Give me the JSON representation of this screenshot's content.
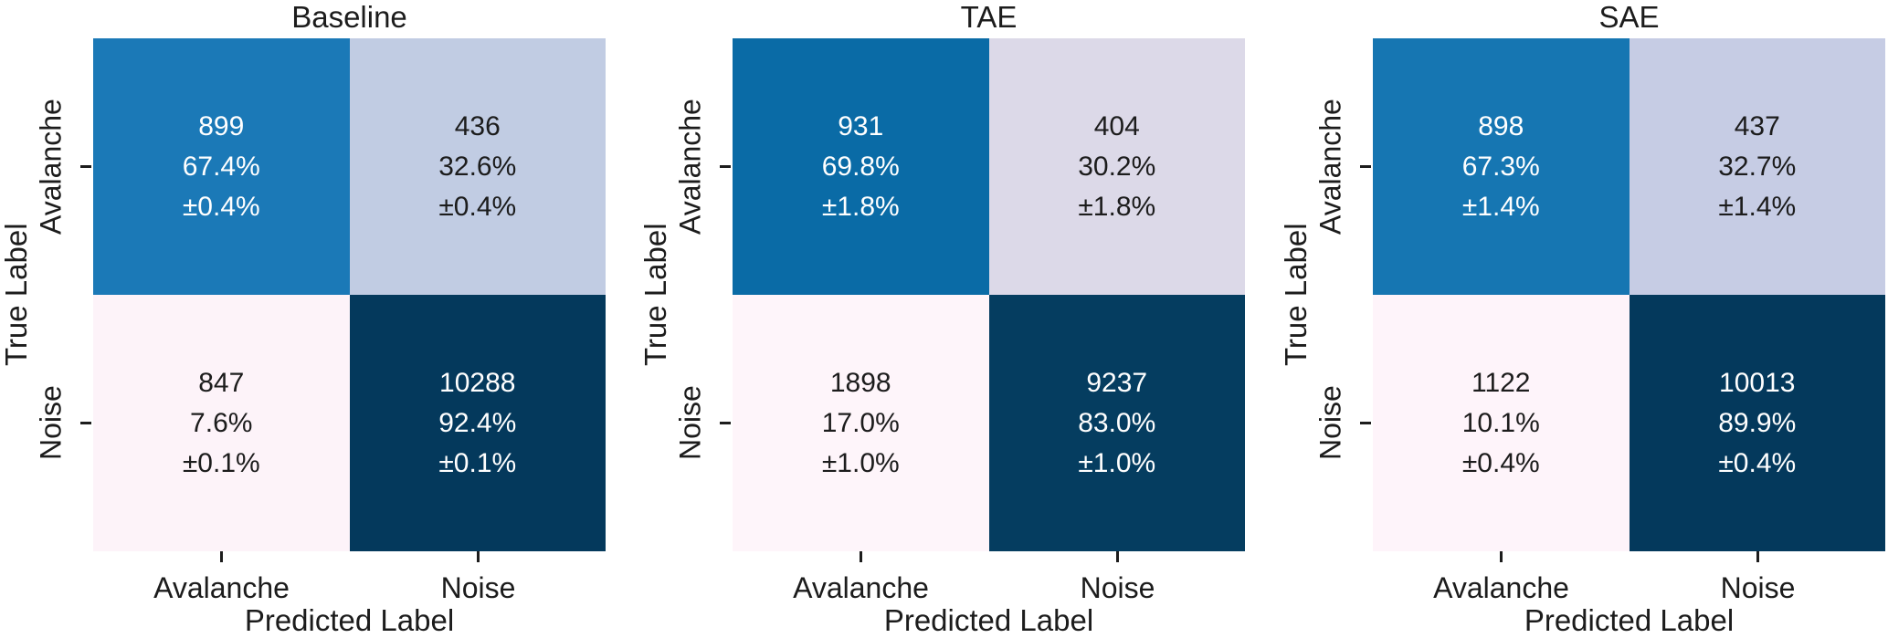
{
  "chart_data": [
    {
      "type": "heatmap",
      "title": "Baseline",
      "xlabel": "Predicted Label",
      "ylabel": "True Label",
      "x_categories": [
        "Avalanche",
        "Noise"
      ],
      "y_categories": [
        "Avalanche",
        "Noise"
      ],
      "rows": [
        {
          "true_label": "Avalanche",
          "cells": [
            {
              "predicted_label": "Avalanche",
              "count": "899",
              "percent": "67.4%",
              "error": "±0.4%",
              "bg": "#1b79b7",
              "fg": "#ffffff"
            },
            {
              "predicted_label": "Noise",
              "count": "436",
              "percent": "32.6%",
              "error": "±0.4%",
              "bg": "#c1cce3",
              "fg": "#1c1c1c"
            }
          ]
        },
        {
          "true_label": "Noise",
          "cells": [
            {
              "predicted_label": "Avalanche",
              "count": "847",
              "percent": "7.6%",
              "error": "±0.1%",
              "bg": "#fdf3f9",
              "fg": "#1c1c1c"
            },
            {
              "predicted_label": "Noise",
              "count": "10288",
              "percent": "92.4%",
              "error": "±0.1%",
              "bg": "#04395c",
              "fg": "#ffffff"
            }
          ]
        }
      ]
    },
    {
      "type": "heatmap",
      "title": "TAE",
      "xlabel": "Predicted Label",
      "ylabel": "True Label",
      "x_categories": [
        "Avalanche",
        "Noise"
      ],
      "y_categories": [
        "Avalanche",
        "Noise"
      ],
      "rows": [
        {
          "true_label": "Avalanche",
          "cells": [
            {
              "predicted_label": "Avalanche",
              "count": "931",
              "percent": "69.8%",
              "error": "±1.8%",
              "bg": "#0a6ba6",
              "fg": "#ffffff"
            },
            {
              "predicted_label": "Noise",
              "count": "404",
              "percent": "30.2%",
              "error": "±1.8%",
              "bg": "#dcd9e8",
              "fg": "#1c1c1c"
            }
          ]
        },
        {
          "true_label": "Noise",
          "cells": [
            {
              "predicted_label": "Avalanche",
              "count": "1898",
              "percent": "17.0%",
              "error": "±1.0%",
              "bg": "#fef5fa",
              "fg": "#1c1c1c"
            },
            {
              "predicted_label": "Noise",
              "count": "9237",
              "percent": "83.0%",
              "error": "±1.0%",
              "bg": "#053d60",
              "fg": "#ffffff"
            }
          ]
        }
      ]
    },
    {
      "type": "heatmap",
      "title": "SAE",
      "xlabel": "Predicted Label",
      "ylabel": "True Label",
      "x_categories": [
        "Avalanche",
        "Noise"
      ],
      "y_categories": [
        "Avalanche",
        "Noise"
      ],
      "rows": [
        {
          "true_label": "Avalanche",
          "cells": [
            {
              "predicted_label": "Avalanche",
              "count": "898",
              "percent": "67.3%",
              "error": "±1.4%",
              "bg": "#1676b2",
              "fg": "#ffffff"
            },
            {
              "predicted_label": "Noise",
              "count": "437",
              "percent": "32.7%",
              "error": "±1.4%",
              "bg": "#c6cce4",
              "fg": "#1c1c1c"
            }
          ]
        },
        {
          "true_label": "Noise",
          "cells": [
            {
              "predicted_label": "Avalanche",
              "count": "1122",
              "percent": "10.1%",
              "error": "±0.4%",
              "bg": "#fef4fa",
              "fg": "#1c1c1c"
            },
            {
              "predicted_label": "Noise",
              "count": "10013",
              "percent": "89.9%",
              "error": "±0.4%",
              "bg": "#04395c",
              "fg": "#ffffff"
            }
          ]
        }
      ]
    }
  ]
}
